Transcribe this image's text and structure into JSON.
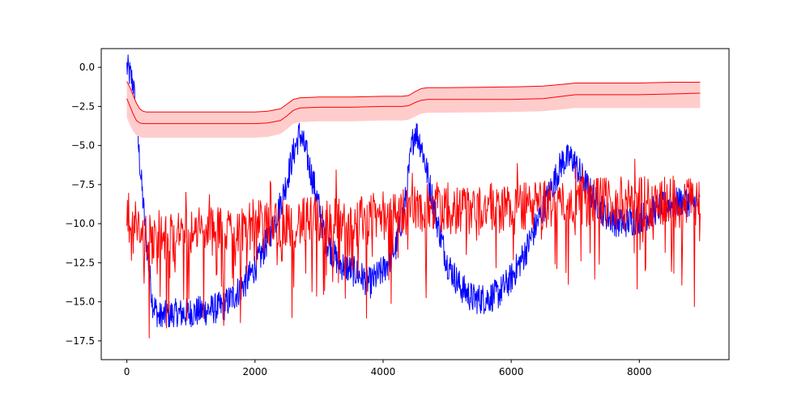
{
  "chart_data": {
    "type": "line",
    "title": "",
    "xlabel": "",
    "ylabel": "",
    "xlim": [
      -400,
      9400
    ],
    "ylim": [
      -18.7,
      1.2
    ],
    "x_ticks": [
      0,
      2000,
      4000,
      6000,
      8000
    ],
    "x_tick_labels": [
      "0",
      "2000",
      "4000",
      "6000",
      "8000"
    ],
    "y_ticks": [
      0.0,
      -2.5,
      -5.0,
      -7.5,
      -10.0,
      -12.5,
      -15.0,
      -17.5
    ],
    "y_tick_labels": [
      "0.0",
      "−2.5",
      "−5.0",
      "−7.5",
      "−10.0",
      "−12.5",
      "−15.0",
      "−17.5"
    ],
    "grid": false,
    "legend": "none",
    "series": [
      {
        "kind": "noisy_line",
        "color": "#0000ff",
        "x": [
          0,
          100,
          200,
          300,
          400,
          500,
          700,
          1000,
          1300,
          1500,
          1700,
          1900,
          2100,
          2300,
          2450,
          2600,
          2700,
          2800,
          2950,
          3100,
          3300,
          3600,
          3800,
          4000,
          4200,
          4350,
          4450,
          4500,
          4600,
          4700,
          4850,
          5000,
          5200,
          5400,
          5600,
          5800,
          6000,
          6200,
          6400,
          6600,
          6800,
          6950,
          7100,
          7300,
          7500,
          7700,
          7900,
          8100,
          8300,
          8500,
          8700,
          8950
        ],
        "y": [
          0.0,
          -1.0,
          -6.0,
          -11.0,
          -15.0,
          -16.0,
          -15.8,
          -15.7,
          -15.5,
          -15.3,
          -14.5,
          -13.5,
          -12.0,
          -10.0,
          -8.0,
          -5.5,
          -4.2,
          -5.5,
          -8.0,
          -11.0,
          -12.5,
          -13.2,
          -13.8,
          -13.0,
          -11.5,
          -8.5,
          -5.0,
          -4.0,
          -5.0,
          -7.0,
          -10.0,
          -12.5,
          -14.0,
          -14.8,
          -14.8,
          -14.5,
          -13.5,
          -12.0,
          -10.0,
          -8.0,
          -6.0,
          -5.8,
          -7.0,
          -8.5,
          -9.5,
          -10.0,
          -9.8,
          -9.5,
          -9.0,
          -8.8,
          -8.5,
          -8.8
        ],
        "noise_amplitude": 1.0
      },
      {
        "kind": "noisy_line",
        "color": "#ff0000",
        "x": [
          0,
          300,
          600,
          1000,
          1500,
          2000,
          2500,
          3000,
          3500,
          4000,
          4500,
          5000,
          5500,
          6000,
          6500,
          7000,
          7500,
          8000,
          8500,
          8950
        ],
        "y": [
          -9.5,
          -11.0,
          -11.0,
          -10.5,
          -10.5,
          -10.0,
          -10.0,
          -9.8,
          -10.0,
          -9.5,
          -9.0,
          -9.2,
          -9.0,
          -9.0,
          -8.8,
          -8.5,
          -8.6,
          -8.6,
          -8.5,
          -8.5
        ],
        "noise_amplitude": 1.6,
        "spike_amplitude": 5.5
      },
      {
        "kind": "mean_with_band",
        "color": "#ff0000",
        "band_color": "#ffcccc",
        "x": [
          0,
          50,
          100,
          150,
          200,
          250,
          300,
          1000,
          2000,
          2200,
          2400,
          2500,
          2600,
          2700,
          3000,
          3500,
          4000,
          4300,
          4400,
          4500,
          4600,
          4700,
          5000,
          6000,
          6500,
          6900,
          7000,
          7100,
          7500,
          8000,
          8500,
          8950
        ],
        "y": [
          -2.0,
          -2.5,
          -3.0,
          -3.4,
          -3.55,
          -3.6,
          -3.6,
          -3.6,
          -3.6,
          -3.55,
          -3.4,
          -3.1,
          -2.75,
          -2.6,
          -2.55,
          -2.55,
          -2.5,
          -2.5,
          -2.45,
          -2.25,
          -2.1,
          -2.05,
          -2.05,
          -2.05,
          -2.0,
          -1.8,
          -1.75,
          -1.75,
          -1.75,
          -1.75,
          -1.7,
          -1.65
        ],
        "upper": [
          -0.9,
          -1.3,
          -1.8,
          -2.3,
          -2.65,
          -2.8,
          -2.85,
          -2.85,
          -2.85,
          -2.8,
          -2.65,
          -2.35,
          -2.05,
          -1.95,
          -1.9,
          -1.9,
          -1.85,
          -1.85,
          -1.8,
          -1.55,
          -1.35,
          -1.3,
          -1.3,
          -1.25,
          -1.2,
          -1.05,
          -1.0,
          -1.0,
          -1.0,
          -1.0,
          -0.95,
          -0.95
        ],
        "lower": [
          -3.2,
          -3.7,
          -4.1,
          -4.35,
          -4.45,
          -4.5,
          -4.5,
          -4.5,
          -4.5,
          -4.45,
          -4.25,
          -3.95,
          -3.6,
          -3.5,
          -3.45,
          -3.45,
          -3.4,
          -3.4,
          -3.35,
          -3.15,
          -2.95,
          -2.9,
          -2.9,
          -2.85,
          -2.8,
          -2.65,
          -2.6,
          -2.6,
          -2.6,
          -2.6,
          -2.6,
          -2.6
        ]
      }
    ]
  }
}
